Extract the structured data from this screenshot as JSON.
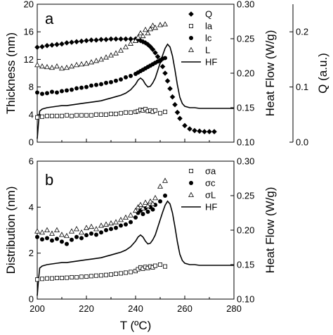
{
  "chart_data": [
    {
      "type": "scatter",
      "panel_label": "a",
      "xlim": [
        200,
        280
      ],
      "ylabel": "Thickness (nm)",
      "ylim": [
        0,
        20
      ],
      "yticks": [
        "0",
        "4",
        "8",
        "12",
        "16",
        "20"
      ],
      "y2label": "Heat Flow (W/g)",
      "y2lim": [
        0.1,
        0.3
      ],
      "y2ticks": [
        "0.10",
        "0.15",
        "0.20",
        "0.25",
        "0.30"
      ],
      "y3label": "Q (a.u.)",
      "y3lim": [
        0.0,
        0.25
      ],
      "y3ticks": [
        "0.0",
        "0.1",
        "0.2"
      ],
      "legend_position": "top-right",
      "series": [
        {
          "name": "Q",
          "marker": "diamond-filled",
          "axis": "y3",
          "x": [
            200,
            202,
            204,
            206,
            208,
            210,
            212,
            214,
            216,
            218,
            220,
            222,
            224,
            226,
            228,
            230,
            232,
            234,
            236,
            238,
            240,
            241,
            242,
            243,
            244,
            245,
            246,
            247,
            248,
            249,
            250,
            251,
            252,
            253,
            254,
            255,
            256,
            257,
            258,
            260,
            262,
            264,
            266,
            268,
            270,
            272
          ],
          "y": [
            0.172,
            0.173,
            0.175,
            0.176,
            0.177,
            0.178,
            0.18,
            0.181,
            0.182,
            0.183,
            0.184,
            0.185,
            0.185,
            0.186,
            0.186,
            0.187,
            0.187,
            0.187,
            0.187,
            0.187,
            0.187,
            0.186,
            0.184,
            0.182,
            0.18,
            0.177,
            0.173,
            0.168,
            0.162,
            0.155,
            0.147,
            0.137,
            0.125,
            0.111,
            0.097,
            0.082,
            0.068,
            0.054,
            0.043,
            0.03,
            0.024,
            0.021,
            0.02,
            0.019,
            0.019,
            0.019
          ]
        },
        {
          "name": "la",
          "marker": "square-open",
          "axis": "y",
          "x": [
            200,
            202,
            204,
            206,
            208,
            210,
            212,
            214,
            216,
            218,
            220,
            222,
            224,
            226,
            228,
            230,
            232,
            234,
            236,
            238,
            240,
            241,
            242,
            243,
            244,
            245,
            246,
            247,
            248,
            250,
            252
          ],
          "y": [
            3.6,
            3.7,
            3.8,
            3.8,
            3.8,
            3.8,
            3.9,
            3.8,
            3.9,
            3.9,
            3.9,
            3.9,
            4.0,
            4.0,
            4.0,
            4.1,
            4.1,
            4.2,
            4.3,
            4.3,
            4.4,
            4.5,
            4.7,
            4.6,
            4.8,
            4.5,
            4.6,
            4.4,
            4.6,
            4.2,
            4.4
          ]
        },
        {
          "name": "lc",
          "marker": "circle-filled",
          "axis": "y",
          "x": [
            200,
            202,
            204,
            206,
            208,
            210,
            212,
            214,
            216,
            218,
            220,
            222,
            224,
            226,
            228,
            230,
            232,
            234,
            236,
            238,
            240,
            241,
            242,
            243,
            244,
            245,
            246,
            247,
            248,
            249,
            250,
            251,
            252
          ],
          "y": [
            7.2,
            7.0,
            7.1,
            7.3,
            7.2,
            7.4,
            7.5,
            7.6,
            7.8,
            7.9,
            8.0,
            8.2,
            8.3,
            8.4,
            8.6,
            8.7,
            8.9,
            9.1,
            9.4,
            9.6,
            9.9,
            10.1,
            10.3,
            10.5,
            10.7,
            10.9,
            11.1,
            11.3,
            11.5,
            11.7,
            11.9,
            12.1,
            12.2
          ]
        },
        {
          "name": "L",
          "marker": "triangle-open",
          "axis": "y",
          "x": [
            200,
            202,
            204,
            206,
            208,
            210,
            212,
            214,
            216,
            218,
            220,
            222,
            224,
            226,
            228,
            230,
            232,
            234,
            236,
            238,
            240,
            241,
            242,
            243,
            244,
            245,
            246,
            247,
            248,
            250,
            252
          ],
          "y": [
            11.2,
            11.0,
            10.9,
            10.8,
            11.0,
            10.7,
            10.8,
            11.0,
            11.2,
            11.3,
            11.4,
            11.6,
            11.8,
            12.0,
            12.3,
            12.6,
            12.9,
            13.3,
            13.8,
            14.3,
            14.7,
            15.2,
            15.8,
            15.4,
            16.3,
            15.8,
            16.4,
            16.9,
            16.6,
            17.0,
            17.1
          ]
        },
        {
          "name": "HF",
          "marker": "line",
          "axis": "y2",
          "x": [
            200,
            200.5,
            201,
            202,
            204,
            206,
            208,
            210,
            212,
            214,
            216,
            218,
            220,
            222,
            224,
            226,
            228,
            230,
            232,
            234,
            236,
            238,
            240,
            241,
            242,
            243,
            244,
            245,
            246,
            247,
            248,
            249,
            250,
            251,
            252,
            253,
            254,
            255,
            256,
            257,
            258,
            259,
            260,
            262,
            264,
            266,
            268,
            270,
            272,
            274,
            276,
            278,
            280
          ],
          "y": [
            0.105,
            0.128,
            0.145,
            0.148,
            0.15,
            0.151,
            0.152,
            0.153,
            0.153,
            0.154,
            0.155,
            0.156,
            0.157,
            0.158,
            0.159,
            0.16,
            0.162,
            0.164,
            0.166,
            0.168,
            0.171,
            0.176,
            0.184,
            0.19,
            0.193,
            0.19,
            0.184,
            0.18,
            0.181,
            0.186,
            0.193,
            0.204,
            0.215,
            0.226,
            0.236,
            0.242,
            0.238,
            0.225,
            0.205,
            0.183,
            0.165,
            0.156,
            0.152,
            0.15,
            0.15,
            0.149,
            0.149,
            0.149,
            0.149,
            0.149,
            0.149,
            0.149,
            0.149
          ]
        }
      ]
    },
    {
      "type": "scatter",
      "panel_label": "b",
      "xlabel": "T (ºC)",
      "xlim": [
        200,
        280
      ],
      "xticks": [
        "200",
        "220",
        "240",
        "260",
        "280"
      ],
      "ylabel": "Distribution (nm)",
      "ylim": [
        0,
        6
      ],
      "yticks": [
        "0",
        "2",
        "4",
        "6"
      ],
      "y2label": "Heat Flow (W/g)",
      "y2lim": [
        0.1,
        0.3
      ],
      "y2ticks": [
        "0.10",
        "0.15",
        "0.20",
        "0.25",
        "0.30"
      ],
      "legend_position": "top-right",
      "series": [
        {
          "name": "σa",
          "marker": "square-open",
          "axis": "y",
          "x": [
            200,
            202,
            204,
            206,
            208,
            210,
            212,
            214,
            216,
            218,
            220,
            222,
            224,
            226,
            228,
            230,
            232,
            234,
            236,
            238,
            240,
            241,
            242,
            243,
            244,
            245,
            246,
            247,
            248,
            250,
            252
          ],
          "y": [
            0.85,
            0.88,
            0.9,
            0.9,
            0.92,
            0.92,
            0.93,
            0.95,
            0.95,
            0.97,
            0.98,
            1.0,
            1.02,
            1.03,
            1.05,
            1.07,
            1.1,
            1.12,
            1.15,
            1.18,
            1.22,
            1.3,
            1.38,
            1.32,
            1.4,
            1.35,
            1.42,
            1.38,
            1.45,
            1.5,
            1.42
          ]
        },
        {
          "name": "σc",
          "marker": "circle-filled",
          "axis": "y",
          "x": [
            200,
            202,
            204,
            206,
            208,
            210,
            212,
            214,
            216,
            218,
            220,
            222,
            224,
            226,
            228,
            230,
            232,
            234,
            236,
            238,
            240,
            241,
            242,
            243,
            244,
            245,
            246,
            247,
            248,
            250,
            252
          ],
          "y": [
            2.7,
            2.6,
            2.65,
            2.55,
            2.62,
            2.5,
            2.4,
            2.58,
            2.7,
            2.65,
            2.78,
            2.85,
            2.8,
            2.9,
            3.0,
            3.05,
            3.1,
            3.2,
            3.25,
            3.35,
            3.55,
            3.75,
            3.85,
            3.7,
            3.95,
            3.8,
            4.0,
            3.9,
            4.1,
            4.25,
            4.5
          ]
        },
        {
          "name": "σL",
          "marker": "triangle-open",
          "axis": "y",
          "x": [
            200,
            202,
            204,
            206,
            208,
            210,
            212,
            214,
            216,
            218,
            220,
            222,
            224,
            226,
            228,
            230,
            232,
            234,
            236,
            238,
            240,
            241,
            242,
            243,
            244,
            245,
            246,
            247,
            248,
            250,
            252
          ],
          "y": [
            2.95,
            2.9,
            3.0,
            2.85,
            3.0,
            2.8,
            2.75,
            2.95,
            3.05,
            2.9,
            3.1,
            3.15,
            3.05,
            3.2,
            3.25,
            3.3,
            3.35,
            3.45,
            3.55,
            3.65,
            3.85,
            4.0,
            4.1,
            3.95,
            4.2,
            4.05,
            4.25,
            4.15,
            4.4,
            4.9,
            5.15
          ]
        },
        {
          "name": "HF",
          "marker": "line",
          "axis": "y2",
          "x": [
            200,
            200.5,
            201,
            202,
            204,
            206,
            208,
            210,
            212,
            214,
            216,
            218,
            220,
            222,
            224,
            226,
            228,
            230,
            232,
            234,
            236,
            238,
            240,
            241,
            242,
            243,
            244,
            245,
            246,
            247,
            248,
            249,
            250,
            251,
            252,
            253,
            254,
            255,
            256,
            257,
            258,
            259,
            260,
            262,
            264,
            266,
            268,
            270,
            272,
            274,
            276,
            278,
            280
          ],
          "y": [
            0.105,
            0.128,
            0.145,
            0.148,
            0.15,
            0.151,
            0.152,
            0.153,
            0.153,
            0.154,
            0.155,
            0.156,
            0.157,
            0.158,
            0.159,
            0.16,
            0.162,
            0.164,
            0.166,
            0.168,
            0.171,
            0.176,
            0.184,
            0.19,
            0.193,
            0.19,
            0.184,
            0.18,
            0.181,
            0.186,
            0.193,
            0.204,
            0.215,
            0.226,
            0.236,
            0.242,
            0.238,
            0.225,
            0.205,
            0.183,
            0.165,
            0.156,
            0.152,
            0.15,
            0.15,
            0.149,
            0.149,
            0.149,
            0.149,
            0.149,
            0.149,
            0.149,
            0.149
          ]
        }
      ]
    }
  ]
}
